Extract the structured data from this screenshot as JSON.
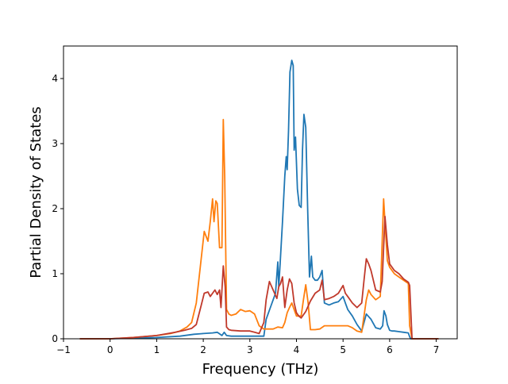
{
  "chart_data": {
    "type": "line",
    "title": "",
    "xlabel": "Frequency (THz)",
    "ylabel": "Partial Density of States",
    "xlim": [
      -1.0,
      7.45
    ],
    "ylim": [
      0,
      4.5
    ],
    "xticks": [
      -1,
      0,
      1,
      2,
      3,
      4,
      5,
      6,
      7
    ],
    "yticks": [
      0,
      1,
      2,
      3,
      4
    ],
    "grid": false,
    "legend": "none",
    "series": [
      {
        "color": "#1f77b4",
        "x": [
          -0.65,
          0.0,
          1.0,
          1.5,
          1.8,
          2.0,
          2.2,
          2.3,
          2.4,
          2.45,
          2.5,
          2.6,
          3.0,
          3.3,
          3.35,
          3.45,
          3.55,
          3.6,
          3.62,
          3.65,
          3.7,
          3.75,
          3.78,
          3.8,
          3.83,
          3.86,
          3.9,
          3.93,
          3.95,
          3.98,
          4.02,
          4.06,
          4.1,
          4.13,
          4.16,
          4.2,
          4.24,
          4.28,
          4.32,
          4.35,
          4.4,
          4.45,
          4.5,
          4.55,
          4.6,
          4.7,
          4.8,
          4.9,
          5.0,
          5.05,
          5.1,
          5.2,
          5.3,
          5.4,
          5.5,
          5.6,
          5.7,
          5.8,
          5.85,
          5.88,
          5.92,
          5.95,
          6.0,
          6.05,
          6.1,
          6.2,
          6.3,
          6.4,
          6.42,
          6.45,
          7.05
        ],
        "y": [
          0.0,
          0.0,
          0.02,
          0.04,
          0.07,
          0.08,
          0.09,
          0.1,
          0.05,
          0.1,
          0.05,
          0.04,
          0.04,
          0.04,
          0.3,
          0.5,
          0.7,
          1.18,
          0.8,
          1.15,
          1.8,
          2.5,
          2.8,
          2.6,
          3.2,
          4.1,
          4.28,
          4.2,
          2.9,
          3.1,
          2.3,
          2.05,
          2.02,
          2.9,
          3.45,
          3.25,
          2.0,
          0.95,
          1.27,
          0.95,
          0.9,
          0.9,
          0.95,
          1.05,
          0.55,
          0.52,
          0.55,
          0.57,
          0.65,
          0.55,
          0.45,
          0.35,
          0.22,
          0.12,
          0.38,
          0.3,
          0.17,
          0.15,
          0.2,
          0.43,
          0.35,
          0.22,
          0.13,
          0.12,
          0.12,
          0.11,
          0.1,
          0.09,
          0.05,
          0.0,
          0.0
        ]
      },
      {
        "color": "#ff7f0e",
        "x": [
          -0.65,
          0.0,
          0.5,
          1.0,
          1.3,
          1.5,
          1.65,
          1.75,
          1.85,
          1.95,
          2.02,
          2.1,
          2.15,
          2.2,
          2.23,
          2.27,
          2.3,
          2.35,
          2.4,
          2.43,
          2.46,
          2.5,
          2.55,
          2.6,
          2.7,
          2.8,
          2.9,
          3.0,
          3.1,
          3.2,
          3.3,
          3.35,
          3.5,
          3.6,
          3.7,
          3.75,
          3.8,
          3.85,
          3.9,
          4.0,
          4.1,
          4.15,
          4.2,
          4.25,
          4.3,
          4.4,
          4.5,
          4.6,
          4.8,
          5.0,
          5.1,
          5.2,
          5.3,
          5.4,
          5.45,
          5.5,
          5.55,
          5.6,
          5.7,
          5.8,
          5.84,
          5.87,
          5.9,
          5.95,
          6.0,
          6.1,
          6.2,
          6.3,
          6.4,
          6.43,
          6.48,
          7.05
        ],
        "y": [
          0.0,
          0.0,
          0.02,
          0.05,
          0.08,
          0.12,
          0.18,
          0.25,
          0.55,
          1.2,
          1.65,
          1.5,
          1.8,
          2.15,
          1.8,
          2.12,
          2.08,
          1.4,
          1.4,
          3.37,
          2.5,
          0.45,
          0.38,
          0.36,
          0.38,
          0.45,
          0.42,
          0.43,
          0.38,
          0.2,
          0.15,
          0.15,
          0.15,
          0.18,
          0.17,
          0.25,
          0.4,
          0.48,
          0.55,
          0.35,
          0.35,
          0.6,
          0.83,
          0.55,
          0.14,
          0.14,
          0.15,
          0.2,
          0.2,
          0.2,
          0.2,
          0.17,
          0.12,
          0.1,
          0.35,
          0.6,
          0.75,
          0.68,
          0.6,
          0.65,
          1.5,
          2.15,
          1.8,
          1.2,
          1.1,
          1.0,
          0.95,
          0.9,
          0.85,
          0.2,
          0.0,
          0.0
        ]
      },
      {
        "color": "#c0392b",
        "x": [
          -0.65,
          0.0,
          0.5,
          1.0,
          1.4,
          1.6,
          1.75,
          1.85,
          1.95,
          2.02,
          2.1,
          2.15,
          2.2,
          2.25,
          2.3,
          2.35,
          2.38,
          2.43,
          2.47,
          2.5,
          2.55,
          2.6,
          2.8,
          3.0,
          3.1,
          3.2,
          3.3,
          3.35,
          3.42,
          3.5,
          3.58,
          3.62,
          3.66,
          3.7,
          3.75,
          3.8,
          3.85,
          3.9,
          3.95,
          4.0,
          4.05,
          4.1,
          4.2,
          4.3,
          4.4,
          4.5,
          4.55,
          4.6,
          4.7,
          4.8,
          4.9,
          5.0,
          5.05,
          5.1,
          5.2,
          5.3,
          5.4,
          5.45,
          5.5,
          5.55,
          5.6,
          5.7,
          5.8,
          5.84,
          5.87,
          5.9,
          5.95,
          6.0,
          6.1,
          6.2,
          6.3,
          6.4,
          6.43,
          6.48,
          7.05
        ],
        "y": [
          0.0,
          0.0,
          0.02,
          0.05,
          0.1,
          0.13,
          0.16,
          0.22,
          0.5,
          0.7,
          0.72,
          0.65,
          0.7,
          0.75,
          0.68,
          0.75,
          0.48,
          1.12,
          0.8,
          0.18,
          0.14,
          0.13,
          0.12,
          0.12,
          0.1,
          0.08,
          0.25,
          0.6,
          0.88,
          0.75,
          0.62,
          0.8,
          0.85,
          0.95,
          0.48,
          0.75,
          0.92,
          0.85,
          0.55,
          0.4,
          0.35,
          0.32,
          0.42,
          0.58,
          0.7,
          0.75,
          0.9,
          0.6,
          0.62,
          0.65,
          0.7,
          0.82,
          0.7,
          0.65,
          0.55,
          0.48,
          0.55,
          0.9,
          1.23,
          1.15,
          1.05,
          0.75,
          0.72,
          0.88,
          1.4,
          1.88,
          1.45,
          1.15,
          1.05,
          1.0,
          0.92,
          0.87,
          0.82,
          0.0,
          0.0
        ]
      }
    ]
  }
}
